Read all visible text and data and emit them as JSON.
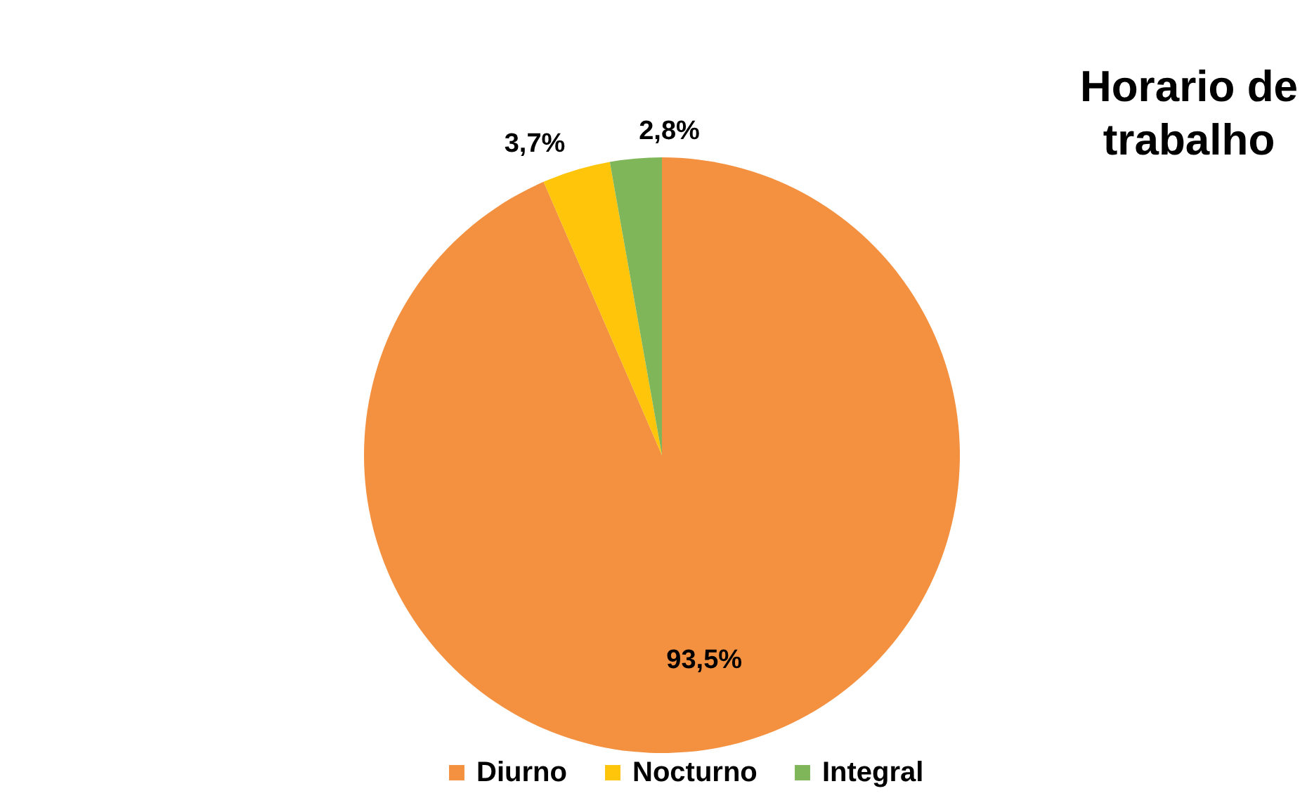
{
  "chart_data": {
    "type": "pie",
    "title": "Horario de trabalho",
    "categories": [
      "Diurno",
      "Nocturno",
      "Integral"
    ],
    "values": [
      93.5,
      3.7,
      2.8
    ],
    "colors": [
      "#f39140",
      "#ffc50a",
      "#7fb65a"
    ],
    "value_labels": [
      "93,5%",
      "3,7%",
      "2,8%"
    ],
    "legend": "bottom"
  }
}
